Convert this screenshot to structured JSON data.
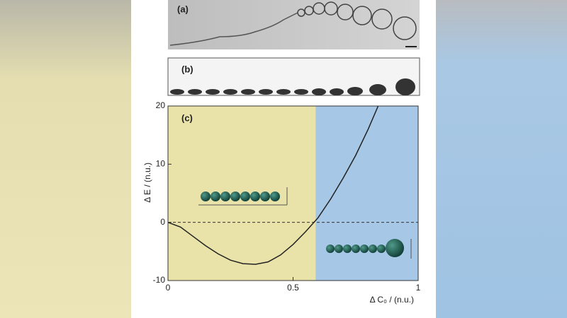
{
  "panels": {
    "a": "(a)",
    "b": "(b)"
  },
  "chart_data": {
    "type": "line",
    "panel_label": "(c)",
    "x_label": "Δ C₀ / (n.u.)",
    "y_label": "Δ E / (n.u.)",
    "x": [
      0,
      0.05,
      0.1,
      0.15,
      0.2,
      0.25,
      0.3,
      0.35,
      0.4,
      0.45,
      0.5,
      0.55,
      0.6,
      0.65,
      0.7,
      0.75,
      0.8,
      0.84
    ],
    "series": [
      {
        "color": "#222222",
        "values": [
          0,
          -0.8,
          -2.4,
          -4.0,
          -5.4,
          -6.5,
          -7.1,
          -7.2,
          -6.8,
          -5.6,
          -3.8,
          -1.6,
          0.8,
          4,
          7.6,
          11.5,
          16,
          20
        ]
      }
    ],
    "xlim": [
      0,
      1
    ],
    "xticks": [
      0,
      0.5,
      1
    ],
    "ylim": [
      -10,
      20
    ],
    "yticks": [
      -10,
      0,
      10,
      20
    ],
    "reference_line": 0,
    "regions": [
      {
        "xlim": [
          0,
          0.59
        ],
        "color": "#e9e3a9"
      },
      {
        "xlim": [
          0.59,
          1
        ],
        "color": "#a6c7e6"
      }
    ]
  }
}
